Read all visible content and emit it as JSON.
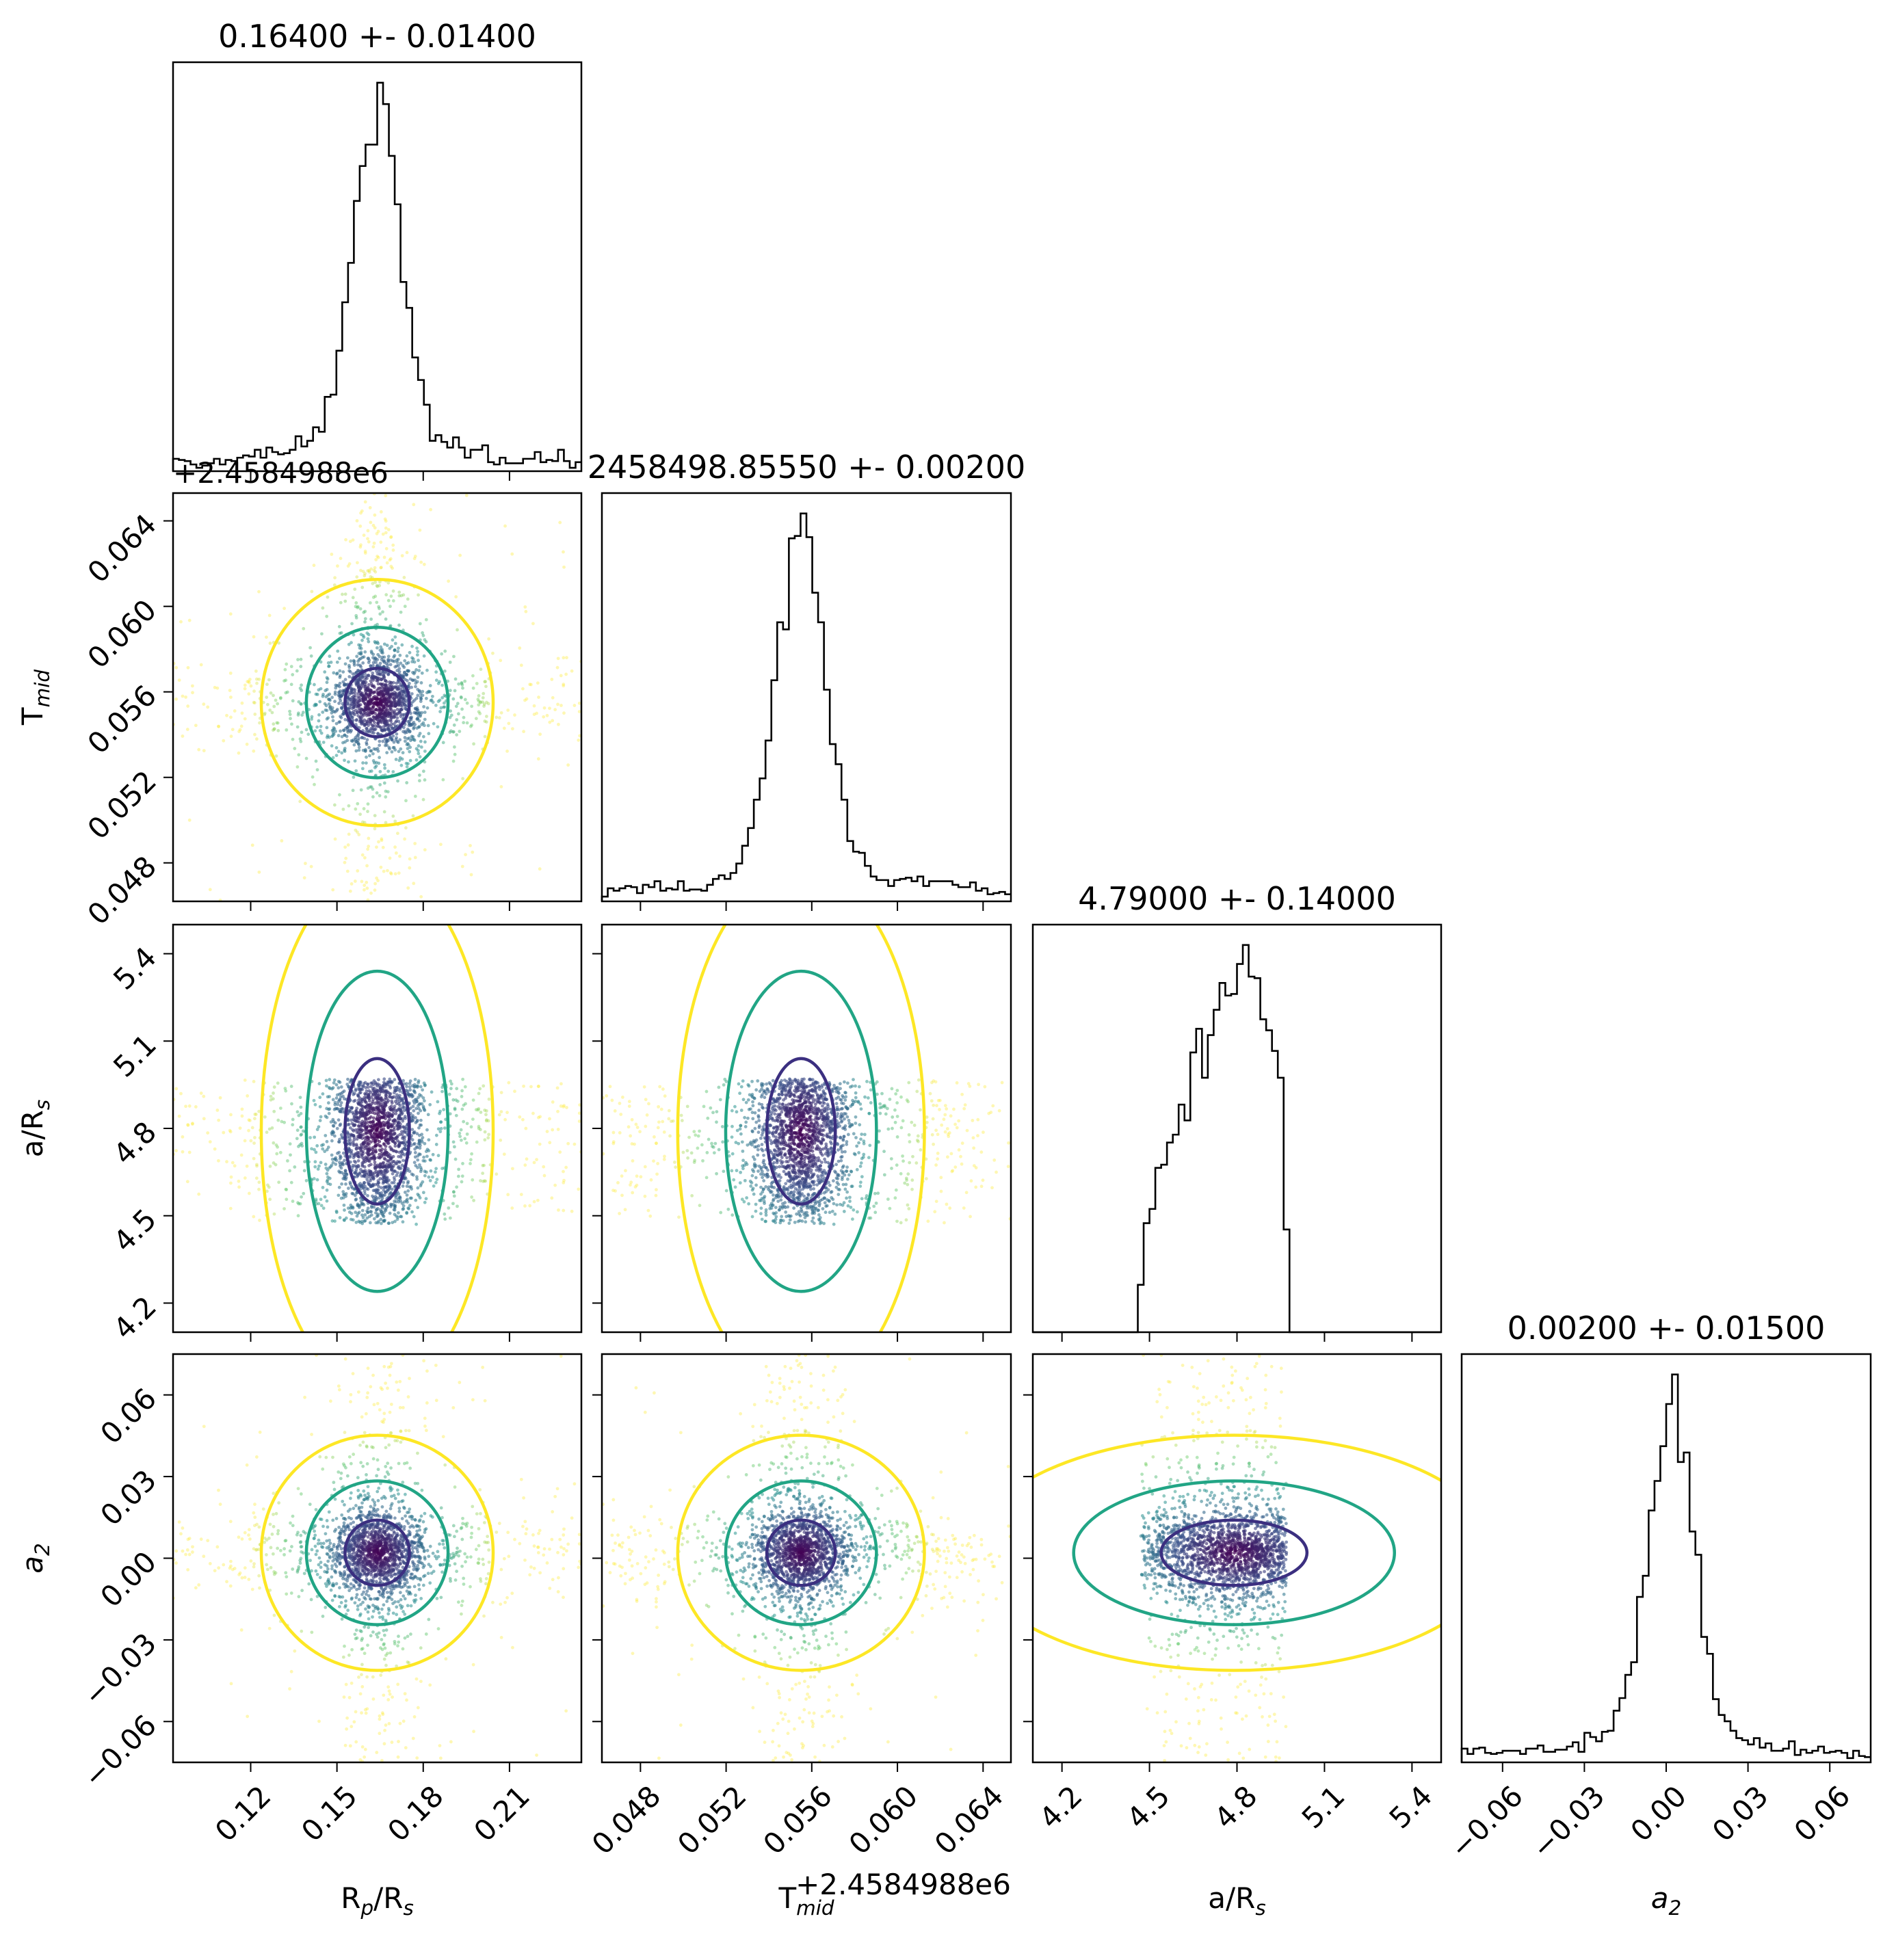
{
  "chart_data": {
    "type": "corner",
    "parameters": [
      {
        "key": "rp",
        "axis_label": "R",
        "axis_label_sub": "p",
        "axis_label_rest": "/R",
        "axis_label_sub2": "s",
        "title": "0.16400 +- 0.01400",
        "median": 0.164,
        "sigma": 0.014,
        "range": [
          0.093,
          0.235
        ],
        "ticks": [
          "0.12",
          "0.15",
          "0.18",
          "0.21"
        ],
        "tick_values": [
          0.12,
          0.15,
          0.18,
          0.21
        ],
        "offset_text": ""
      },
      {
        "key": "tmid",
        "axis_label": "T",
        "axis_label_sub": "mid",
        "axis_label_rest": "",
        "axis_label_sub2": "",
        "title": "2458498.85550 +- 0.00200",
        "median": 0.0555,
        "sigma": 0.002,
        "range": [
          0.0462,
          0.0653
        ],
        "ticks": [
          "0.048",
          "0.052",
          "0.056",
          "0.060",
          "0.064"
        ],
        "tick_values": [
          0.048,
          0.052,
          0.056,
          0.06,
          0.064
        ],
        "offset_text": "+2.4584988e6"
      },
      {
        "key": "ars",
        "axis_label": "a/R",
        "axis_label_sub": "s",
        "axis_label_rest": "",
        "axis_label_sub2": "",
        "title": "4.79000 +- 0.14000",
        "median": 4.79,
        "sigma": 0.14,
        "range": [
          4.1,
          5.5
        ],
        "ticks": [
          "4.2",
          "4.5",
          "4.8",
          "5.1",
          "5.4"
        ],
        "tick_values": [
          4.2,
          4.5,
          4.8,
          5.1,
          5.4
        ],
        "offset_text": ""
      },
      {
        "key": "a2",
        "axis_label": "a",
        "axis_label_sub": "2",
        "axis_label_rest": "",
        "axis_label_sub2": "",
        "italic": true,
        "title": "0.00200 +- 0.01500",
        "median": 0.002,
        "sigma": 0.015,
        "range": [
          -0.075,
          0.075
        ],
        "ticks": [
          "−0.06",
          "−0.03",
          "0.00",
          "0.03",
          "0.06"
        ],
        "tick_values": [
          -0.06,
          -0.03,
          0.0,
          0.03,
          0.06
        ],
        "offset_text": ""
      }
    ],
    "uniform_bounds": {
      "ars": [
        4.47,
        4.97
      ]
    },
    "contour_colors": [
      "#3b2f80",
      "#21a585",
      "#fde725"
    ],
    "point_colors": [
      "#440154",
      "#3b528b",
      "#21918c",
      "#5ec962",
      "#fde725"
    ],
    "histogram_color": "#000000"
  }
}
